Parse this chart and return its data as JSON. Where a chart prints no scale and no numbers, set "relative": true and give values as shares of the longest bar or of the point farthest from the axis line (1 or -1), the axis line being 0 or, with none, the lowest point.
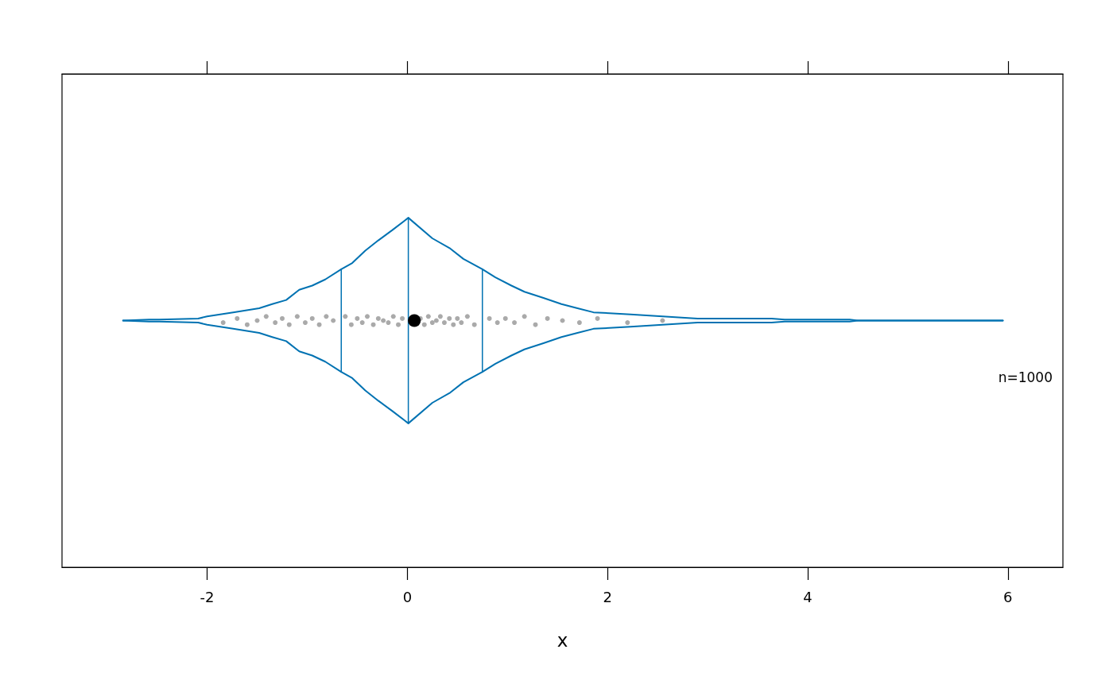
{
  "chart_data": {
    "type": "line",
    "relative": true,
    "xlabel": "x",
    "xlim": [
      -3.45,
      6.55
    ],
    "xticks": [
      -2,
      0,
      2,
      4,
      6
    ],
    "marker": "none",
    "annotations": [
      "n=1000"
    ],
    "series": [
      {
        "color": "#0072b2",
        "x": [
          -2.84,
          -2.58,
          -2.48,
          -2.09,
          -2.0,
          -1.74,
          -1.48,
          -1.35,
          -1.21,
          -1.08,
          -0.95,
          -0.82,
          -0.66,
          -0.55,
          -0.42,
          -0.29,
          -0.15,
          0.01,
          0.25,
          0.43,
          0.56,
          0.75,
          0.88,
          1.04,
          1.17,
          1.36,
          1.54,
          1.7,
          1.86,
          2.23,
          2.55,
          2.9,
          3.35,
          3.64,
          3.77,
          4.42,
          4.5,
          5.95
        ],
        "values": [
          0.5,
          0.505,
          0.505,
          0.51,
          0.52,
          0.54,
          0.56,
          0.58,
          0.6,
          0.65,
          0.67,
          0.7,
          0.75,
          0.78,
          0.84,
          0.89,
          0.94,
          1,
          0.9,
          0.85,
          0.8,
          0.75,
          0.71,
          0.67,
          0.64,
          0.61,
          0.58,
          0.56,
          0.54,
          0.53,
          0.52,
          0.51,
          0.51,
          0.51,
          0.505,
          0.505,
          0.5,
          0.5
        ]
      },
      {
        "color": "#0072b2",
        "x": [
          -2.84,
          -2.58,
          -2.48,
          -2.09,
          -2.0,
          -1.74,
          -1.48,
          -1.35,
          -1.21,
          -1.08,
          -0.95,
          -0.82,
          -0.66,
          -0.55,
          -0.42,
          -0.29,
          -0.15,
          0.01,
          0.25,
          0.43,
          0.56,
          0.75,
          0.88,
          1.04,
          1.17,
          1.36,
          1.54,
          1.7,
          1.86,
          2.23,
          2.55,
          2.9,
          3.35,
          3.64,
          3.77,
          4.42,
          4.5,
          5.95
        ],
        "values": [
          0.5,
          0.495,
          0.495,
          0.49,
          0.48,
          0.46,
          0.44,
          0.42,
          0.4,
          0.35,
          0.33,
          0.3,
          0.25,
          0.22,
          0.16,
          0.11,
          0.06,
          0,
          0.1,
          0.15,
          0.2,
          0.25,
          0.29,
          0.33,
          0.36,
          0.39,
          0.42,
          0.44,
          0.46,
          0.47,
          0.48,
          0.49,
          0.49,
          0.49,
          0.495,
          0.495,
          0.5,
          0.5
        ]
      },
      {
        "color": "#0072b2",
        "x": [
          -0.66,
          -0.66
        ],
        "values": [
          0.25,
          0.75
        ]
      },
      {
        "color": "#0072b2",
        "x": [
          0.01,
          0.01
        ],
        "values": [
          0,
          1
        ]
      },
      {
        "color": "#0072b2",
        "x": [
          0.75,
          0.75
        ],
        "values": [
          0.25,
          0.75
        ]
      },
      {
        "type": "scatter",
        "color": "#aaaaaa",
        "marker": "circle",
        "x": [
          -1.84,
          -1.7,
          -1.6,
          -1.5,
          -1.41,
          -1.32,
          -1.25,
          -1.18,
          -1.1,
          -1.02,
          -0.95,
          -0.88,
          -0.81,
          -0.74,
          -0.62,
          -0.56,
          -0.5,
          -0.45,
          -0.4,
          -0.34,
          -0.29,
          -0.24,
          -0.19,
          -0.14,
          -0.09,
          -0.05,
          0.13,
          0.17,
          0.21,
          0.25,
          0.29,
          0.33,
          0.37,
          0.42,
          0.46,
          0.5,
          0.54,
          0.6,
          0.67,
          0.82,
          0.9,
          0.98,
          1.07,
          1.17,
          1.28,
          1.4,
          1.55,
          1.72,
          1.9,
          2.2,
          2.55
        ],
        "values": [
          0.49,
          0.51,
          0.48,
          0.5,
          0.52,
          0.49,
          0.51,
          0.48,
          0.52,
          0.49,
          0.51,
          0.48,
          0.52,
          0.5,
          0.52,
          0.48,
          0.51,
          0.49,
          0.52,
          0.48,
          0.51,
          0.5,
          0.49,
          0.52,
          0.48,
          0.51,
          0.51,
          0.48,
          0.52,
          0.49,
          0.5,
          0.52,
          0.49,
          0.51,
          0.48,
          0.51,
          0.49,
          0.52,
          0.48,
          0.51,
          0.49,
          0.51,
          0.49,
          0.52,
          0.48,
          0.51,
          0.5,
          0.49,
          0.51,
          0.49,
          0.5
        ]
      },
      {
        "type": "scatter",
        "color": "#000000",
        "marker": "circle",
        "x": [
          0.07
        ],
        "values": [
          0.5
        ]
      }
    ]
  }
}
